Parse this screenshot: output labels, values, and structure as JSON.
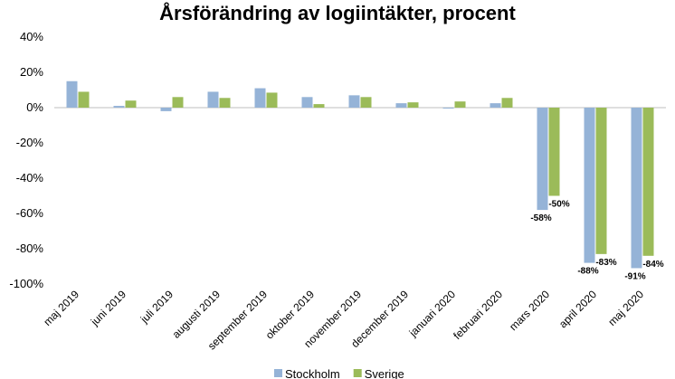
{
  "chart_data": {
    "type": "bar",
    "title": "Årsförändring av logiintäkter, procent",
    "categories": [
      "maj 2019",
      "juni 2019",
      "juli 2019",
      "augusti 2019",
      "september 2019",
      "oktober 2019",
      "november 2019",
      "december 2019",
      "januari 2020",
      "februari 2020",
      "mars 2020",
      "april 2020",
      "maj 2020"
    ],
    "series": [
      {
        "name": "Stockholm",
        "color": "#95b3d7",
        "values": [
          15,
          1,
          -2,
          9,
          11,
          6,
          7,
          2.5,
          -0.5,
          2.5,
          -58,
          -88,
          -91
        ]
      },
      {
        "name": "Sverige",
        "color": "#9bbb59",
        "values": [
          9,
          4,
          6,
          5.5,
          8.5,
          2,
          6,
          3,
          3.5,
          5.5,
          -50,
          -83,
          -84
        ]
      }
    ],
    "data_labels": [
      {
        "series": 0,
        "index": 10,
        "text": "-58%"
      },
      {
        "series": 1,
        "index": 10,
        "text": "-50%"
      },
      {
        "series": 0,
        "index": 11,
        "text": "-88%"
      },
      {
        "series": 1,
        "index": 11,
        "text": "-83%"
      },
      {
        "series": 0,
        "index": 12,
        "text": "-91%"
      },
      {
        "series": 1,
        "index": 12,
        "text": "-84%"
      }
    ],
    "yticks": [
      "40%",
      "20%",
      "0%",
      "-20%",
      "-40%",
      "-60%",
      "-80%",
      "-100%"
    ],
    "ylim": [
      -100,
      40
    ],
    "grid": false,
    "legend_position": "bottom"
  }
}
